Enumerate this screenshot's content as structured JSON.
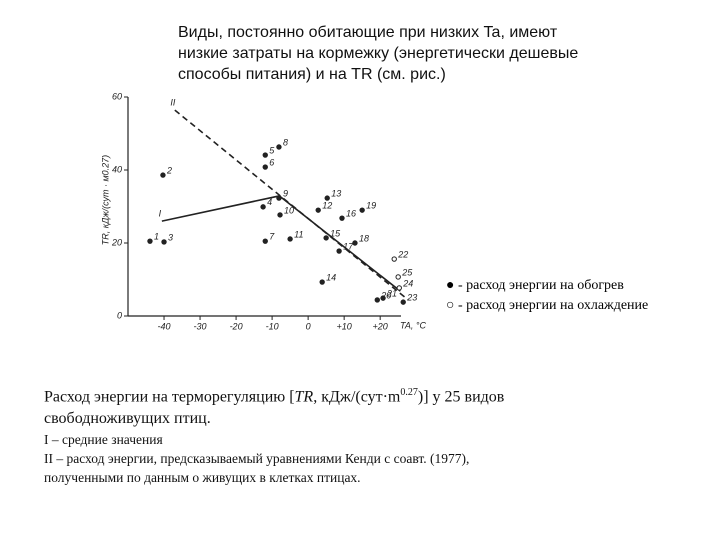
{
  "heading": [
    "Виды, постоянно обитающие при низких Ta, имеют",
    "низкие затраты на кормежку (энергетически дешевые",
    "способы питания) и на TR (см. рис.)"
  ],
  "caption": {
    "first": [
      "Расход энергии на терморегуляцию [",
      "TR",
      ", кДж/(сут·m",
      "0.27",
      ")] у 25 видов"
    ],
    "rest": [
      "свободноживущих птиц.",
      "I – средние значения",
      "II – расход энергии, предсказываемый уравнениями Кенди с соавт. (1977),",
      "полученными по данным о живущих в клетках птицах."
    ]
  },
  "chart_data": {
    "type": "scatter",
    "xlabel": "TA, °C",
    "ylabel": "TR, кДж/(сут · м0.27)",
    "xlim": [
      -50,
      28
    ],
    "ylim": [
      0,
      60
    ],
    "xticks": [
      -40,
      -30,
      -20,
      -10,
      0,
      {
        "value": 10,
        "label": "+10"
      },
      {
        "value": 20,
        "label": "+20"
      }
    ],
    "yticks": [
      0,
      20,
      40,
      60
    ],
    "series": [
      {
        "name": "● - расход энергии на обогрев",
        "filled": true,
        "color": "#222222",
        "labels": [
          "1",
          "2",
          "3",
          "4",
          "5",
          "6",
          "7",
          "8",
          "9",
          "10",
          "11",
          "12",
          "13",
          "14",
          "15",
          "16",
          "17",
          "18",
          "19",
          "20",
          "21",
          "23"
        ],
        "x": [
          -43.9,
          -40.3,
          -40,
          -12.5,
          -11.9,
          -11.9,
          -11.9,
          -8.1,
          -8.1,
          -7.8,
          -5,
          2.8,
          5.3,
          3.9,
          5,
          9.4,
          8.6,
          13,
          15,
          19.2,
          20.8,
          26.4
        ],
        "values": [
          20.5,
          38.6,
          20.3,
          29.9,
          44.1,
          40.8,
          20.5,
          46.3,
          32.3,
          27.7,
          21.1,
          29,
          32.3,
          9.3,
          21.4,
          26.8,
          17.8,
          20,
          29,
          4.4,
          4.9,
          3.8
        ]
      },
      {
        "name": "○ - расход энергии на охлаждение",
        "filled": false,
        "color": "#222222",
        "labels": [
          "22",
          "24",
          "25"
        ],
        "x": [
          23.9,
          25.3,
          25
        ],
        "values": [
          15.6,
          7.7,
          10.7
        ]
      }
    ],
    "lines": [
      {
        "name": "I",
        "dashed": false,
        "x": [
          -40.6,
          -8,
          25.6
        ],
        "y": [
          26,
          32.9,
          6.8
        ]
      },
      {
        "name": "II",
        "dashed": true,
        "x": [
          -37,
          27.8
        ],
        "y": [
          56.4,
          4.4
        ]
      }
    ]
  }
}
